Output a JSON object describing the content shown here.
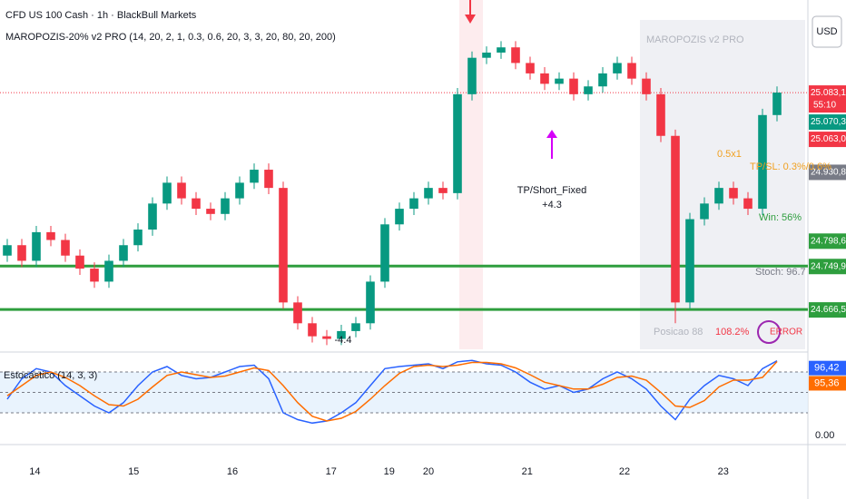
{
  "chart_data": [
    {
      "type": "candlestick",
      "title": "CFD US 100 Cash · 1h · BlackBull Markets",
      "subtitle": "MAROPOZIS-20% v2 PRO (14, 20, 2, 1, 0.3, 0.6, 20, 3, 3, 20, 80, 20, 200)",
      "currency": "USD",
      "up_color": "#089981",
      "down_color": "#f23645",
      "open": [
        24770,
        24790,
        24760,
        24815,
        24800,
        24770,
        24745,
        24720,
        24760,
        24790,
        24820,
        24870,
        24910,
        24880,
        24860,
        24850,
        24880,
        24910,
        24935,
        24900,
        24680,
        24640,
        24615,
        24610,
        24625,
        24640,
        24720,
        24830,
        24860,
        24880,
        24900,
        24890,
        25080,
        25150,
        25160,
        25170,
        25140,
        25120,
        25100,
        25110,
        25080,
        25095,
        25120,
        25140,
        25110,
        25080,
        25000,
        24680,
        24840,
        24870,
        24900,
        24880,
        24860,
        25040
      ],
      "high": [
        24802,
        24802,
        24827,
        24827,
        24812,
        24782,
        24757,
        24772,
        24802,
        24832,
        24882,
        24922,
        24922,
        24892,
        24872,
        24892,
        24922,
        24947,
        24947,
        24912,
        24692,
        24652,
        24627,
        24637,
        24652,
        24732,
        24842,
        24872,
        24892,
        24912,
        24912,
        25092,
        25162,
        25172,
        25182,
        25182,
        25152,
        25132,
        25122,
        25122,
        25107,
        25132,
        25152,
        25152,
        25122,
        25092,
        25012,
        24852,
        24882,
        24912,
        24912,
        24892,
        25052,
        25095
      ],
      "low": [
        24758,
        24748,
        24748,
        24788,
        24758,
        24733,
        24708,
        24708,
        24748,
        24778,
        24808,
        24858,
        24868,
        24848,
        24838,
        24838,
        24868,
        24898,
        24888,
        24668,
        24628,
        24603,
        24598,
        24598,
        24613,
        24628,
        24708,
        24818,
        24848,
        24868,
        24878,
        24878,
        25068,
        25138,
        25148,
        25128,
        25108,
        25088,
        25088,
        25068,
        25068,
        25083,
        25108,
        25098,
        25068,
        24988,
        24640,
        24668,
        24828,
        24858,
        24868,
        24848,
        24848,
        25028
      ],
      "close": [
        24790,
        24760,
        24815,
        24800,
        24770,
        24745,
        24720,
        24760,
        24790,
        24820,
        24870,
        24910,
        24880,
        24860,
        24850,
        24880,
        24910,
        24935,
        24900,
        24680,
        24640,
        24615,
        24610,
        24625,
        24640,
        24720,
        24830,
        24860,
        24880,
        24900,
        24890,
        25080,
        25150,
        25160,
        25170,
        25140,
        25120,
        25100,
        25110,
        25080,
        25095,
        25120,
        25140,
        25110,
        25080,
        25000,
        24680,
        24840,
        24870,
        24900,
        24880,
        24860,
        25040,
        25083.1
      ],
      "ylim": [
        24590,
        25261
      ],
      "xlim": [
        -0.5,
        55.125
      ],
      "xticks": [
        {
          "value": 1.9,
          "label": "14"
        },
        {
          "value": 8.7,
          "label": "15"
        },
        {
          "value": 15.5,
          "label": "16"
        },
        {
          "value": 22.3,
          "label": "17"
        },
        {
          "value": 26.3,
          "label": "19"
        },
        {
          "value": 29,
          "label": "20"
        },
        {
          "value": 35.8,
          "label": "21"
        },
        {
          "value": 42.5,
          "label": "22"
        },
        {
          "value": 49.3,
          "label": "23"
        }
      ],
      "levels": [
        24749.93,
        24666.51
      ],
      "level_color": "#2e9e3e",
      "price_tags": [
        {
          "value": 25083.1,
          "label": "25.083,10",
          "countdown": "55:10",
          "color": "#f23645"
        },
        {
          "value": 25070.36,
          "label": "25.070,36",
          "color": "#089981"
        },
        {
          "value": 25063.04,
          "label": "25.063,04",
          "color": "#f23645"
        },
        {
          "value": 24930.83,
          "label": "24.930,83",
          "color": "#787b86"
        },
        {
          "value": 24798.62,
          "label": "24.798,62",
          "color": "#2e9e3e"
        },
        {
          "value": 24749.93,
          "label": "24.749,93",
          "color": "#2e9e3e"
        },
        {
          "value": 24666.51,
          "label": "24.666,51",
          "color": "#2e9e3e"
        }
      ],
      "annotations": {
        "signal": "TP/Short_Fixed",
        "signal_result": "+4.3",
        "loss": "-4.4"
      },
      "dashboard": {
        "title": "MAROPOZIS v2 PRO",
        "ratio": "0.5x1",
        "tp_sl": "TP/SL: 0.3%/0.6%",
        "win": "Win: 56%",
        "stoch": "Stoch: 96.7",
        "position": "Posicao 88",
        "percent": "108.2%",
        "status": "ERROR"
      }
    },
    {
      "type": "line",
      "title": "Estocástico (14, 3, 3)",
      "series": [
        {
          "name": "K",
          "color": "#2962ff",
          "values": [
            40,
            70,
            85,
            80,
            60,
            45,
            30,
            20,
            35,
            60,
            80,
            88,
            75,
            70,
            72,
            80,
            88,
            90,
            70,
            20,
            10,
            5,
            8,
            20,
            35,
            60,
            85,
            88,
            90,
            92,
            85,
            95,
            97,
            92,
            90,
            80,
            65,
            55,
            60,
            50,
            55,
            70,
            80,
            70,
            55,
            30,
            10,
            40,
            60,
            75,
            70,
            60,
            85,
            96.42
          ],
          "value_labels_last": "96,42"
        },
        {
          "name": "D",
          "color": "#ff6d00",
          "values": [
            45,
            60,
            75,
            80,
            72,
            60,
            45,
            32,
            30,
            40,
            58,
            75,
            80,
            76,
            72,
            74,
            80,
            86,
            82,
            60,
            35,
            15,
            8,
            12,
            22,
            40,
            60,
            78,
            88,
            90,
            88,
            90,
            94,
            94,
            92,
            86,
            76,
            65,
            60,
            55,
            55,
            62,
            72,
            74,
            68,
            50,
            30,
            28,
            38,
            58,
            68,
            68,
            72,
            95.36
          ],
          "value_labels_last": "95,36"
        }
      ],
      "ylim": [
        0,
        100
      ],
      "yticks": [
        {
          "value": 0,
          "label": "0.00"
        }
      ],
      "bands": [
        80,
        50,
        20
      ]
    }
  ]
}
